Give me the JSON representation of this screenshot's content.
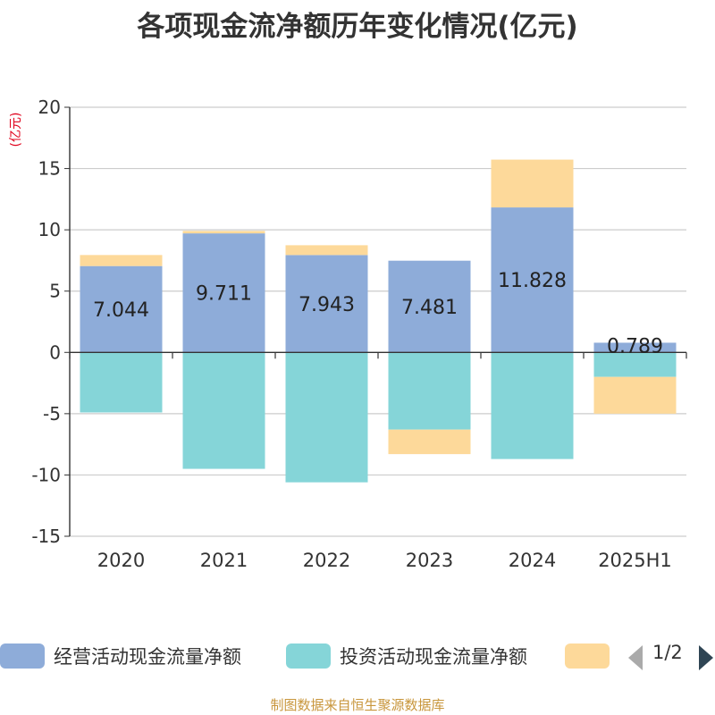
{
  "title": "各项现金流净额历年变化情况(亿元)",
  "chart_data": {
    "type": "bar",
    "stacked": true,
    "unit_label": "(亿元)",
    "categories": [
      "2020",
      "2021",
      "2022",
      "2023",
      "2024",
      "2025H1"
    ],
    "ylim": [
      -15,
      20
    ],
    "yticks": [
      20,
      15,
      10,
      5,
      0,
      -5,
      -10,
      -15
    ],
    "grid": true,
    "series": [
      {
        "name": "经营活动现金流量净额",
        "color": "#8eacd9",
        "values": [
          7.044,
          9.711,
          7.943,
          7.481,
          11.828,
          0.789
        ]
      },
      {
        "name": "投资活动现金流量净额",
        "color": "#85d5d8",
        "values": [
          -4.9,
          -9.5,
          -10.6,
          -6.3,
          -8.7,
          -2.0
        ]
      },
      {
        "name": "",
        "color": "#fdd99a",
        "values": [
          0.9,
          0.2,
          0.8,
          -2.0,
          3.9,
          -3.0
        ]
      }
    ],
    "data_labels": [
      "7.044",
      "9.711",
      "7.943",
      "7.481",
      "11.828",
      "0.789"
    ],
    "legend_position": "bottom"
  },
  "legend": {
    "items": [
      {
        "label": "经营活动现金流量净额",
        "color": "#8eacd9"
      },
      {
        "label": "投资活动现金流量净额",
        "color": "#85d5d8"
      },
      {
        "label": "",
        "color": "#fdd99a"
      }
    ],
    "pager": {
      "text": "1/2"
    }
  },
  "source": "制图数据来自恒生聚源数据库"
}
